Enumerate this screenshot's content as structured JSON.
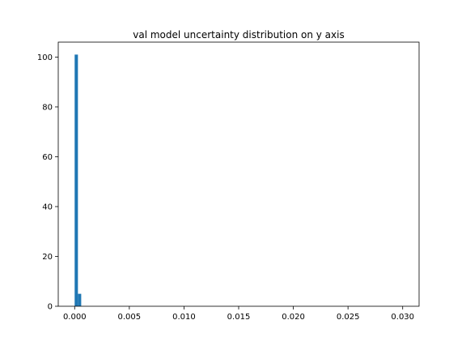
{
  "chart_data": {
    "type": "bar",
    "title": "val model uncertainty distribution on y axis",
    "xlabel": "",
    "ylabel": "",
    "bin_edges": [
      0.0,
      0.0003,
      0.0006
    ],
    "values": [
      101,
      5
    ],
    "xlim": [
      -0.0015,
      0.0315
    ],
    "ylim": [
      0,
      106
    ],
    "xticks": [
      0.0,
      0.005,
      0.01,
      0.015,
      0.02,
      0.025,
      0.03
    ],
    "xtick_labels": [
      "0.000",
      "0.005",
      "0.010",
      "0.015",
      "0.020",
      "0.025",
      "0.030"
    ],
    "yticks": [
      0,
      20,
      40,
      60,
      80,
      100
    ],
    "ytick_labels": [
      "0",
      "20",
      "40",
      "60",
      "80",
      "100"
    ],
    "bar_color": "#1f77b4",
    "grid": false,
    "legend": "none"
  }
}
